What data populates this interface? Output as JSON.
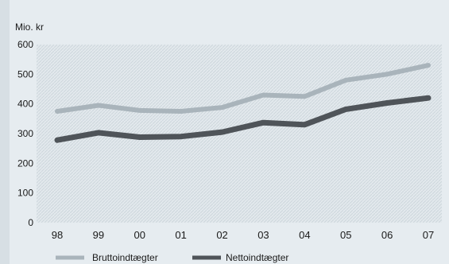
{
  "chart_data": {
    "type": "line",
    "unit_label": "Mio. kr",
    "categories": [
      "98",
      "99",
      "00",
      "01",
      "02",
      "03",
      "04",
      "05",
      "06",
      "07"
    ],
    "y_ticks": [
      0,
      100,
      200,
      300,
      400,
      500,
      600
    ],
    "ylim": [
      0,
      600
    ],
    "grid": false,
    "legend_position": "bottom-left",
    "series": [
      {
        "name": "Bruttoindtægter",
        "color": "#a9b4bb",
        "values": [
          375,
          395,
          378,
          375,
          388,
          430,
          425,
          480,
          500,
          530
        ]
      },
      {
        "name": "Nettoindtægter",
        "color": "#4f5459",
        "values": [
          278,
          303,
          288,
          290,
          305,
          337,
          330,
          382,
          403,
          420
        ]
      }
    ]
  }
}
